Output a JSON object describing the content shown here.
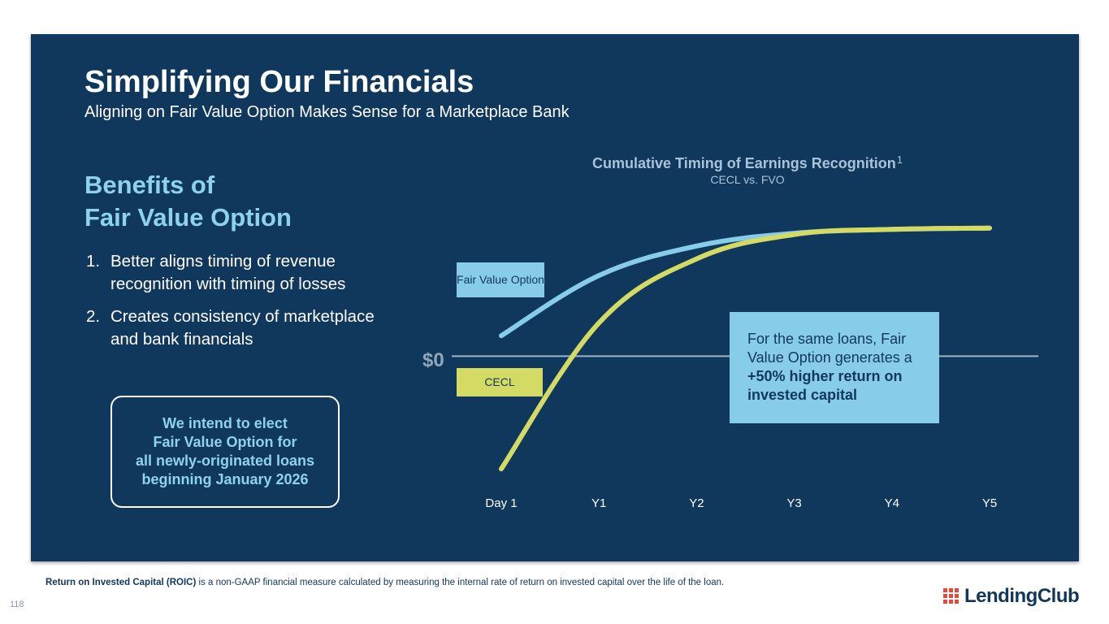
{
  "slide": {
    "title": "Simplifying Our Financials",
    "subtitle": "Aligning on Fair Value Option Makes Sense for a Marketplace Bank",
    "benefits_heading_line1": "Benefits of",
    "benefits_heading_line2": "Fair Value Option",
    "benefits": [
      {
        "num": "1.",
        "text": "Better aligns timing of revenue recognition with timing of losses"
      },
      {
        "num": "2.",
        "text": "Creates consistency of marketplace and bank financials"
      }
    ],
    "elect_box": {
      "line1": "We intend to elect",
      "line2": "Fair Value Option for",
      "line3": "all newly-originated loans",
      "line4": "beginning January 2026"
    },
    "callout": {
      "text_plain": "For the same loans, Fair Value Option generates a ",
      "text_bold": "+50% higher return on invested capital"
    },
    "footnote": {
      "bold": "Return on Invested Capital (ROIC)",
      "text": " is a non-GAAP financial measure calculated by measuring the internal rate of return on invested capital over the life of the loan."
    },
    "page_number": "118",
    "logo_text": "LendingClub",
    "colors": {
      "panel": "#10385c",
      "accent_blue": "#87cce9",
      "cecl_yellow": "#d4db64",
      "heading_blue": "#8ed2ee"
    }
  },
  "chart_data": {
    "type": "line",
    "title": "Cumulative Timing of Earnings Recognition",
    "title_superscript": "1",
    "subtitle": "CECL vs. FVO",
    "zero_label": "$0",
    "categories": [
      "Day 1",
      "Y1",
      "Y2",
      "Y3",
      "Y4",
      "Y5"
    ],
    "x": [
      0,
      1,
      2,
      3,
      4,
      5
    ],
    "ylim": [
      -1.0,
      1.1
    ],
    "series": [
      {
        "name": "Fair Value Option",
        "color": "#87cce9",
        "values": [
          0.16,
          0.63,
          0.86,
          0.96,
          0.99,
          1.0
        ]
      },
      {
        "name": "CECL",
        "color": "#d4db64",
        "values": [
          -0.88,
          0.26,
          0.76,
          0.95,
          0.99,
          1.0
        ]
      }
    ],
    "grid": false,
    "legend": "inline-left"
  }
}
